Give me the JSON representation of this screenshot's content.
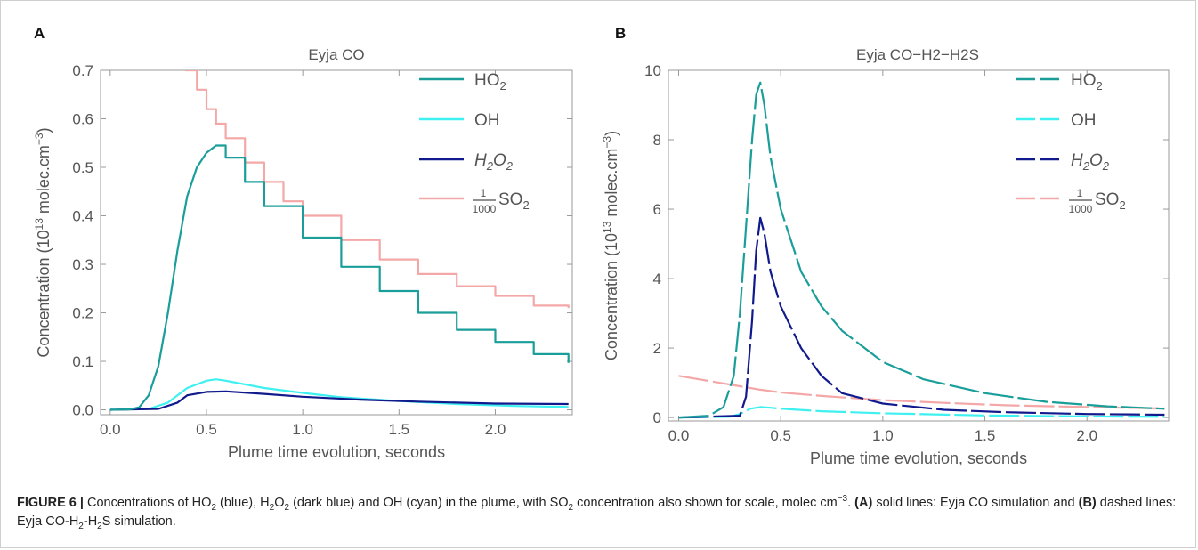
{
  "figure": {
    "caption": {
      "label": "FIGURE 6 |",
      "t1": " Concentrations of HO",
      "t1_sub": "2",
      "t2": " (blue), H",
      "t2_sub": "2",
      "t3": "O",
      "t3_sub": "2",
      "t4": " (dark blue) and OH (cyan) in the plume, with SO",
      "t4_sub": "2",
      "t5": " concentration also shown for scale, molec cm",
      "t5_sup": "−3",
      "t6": ". ",
      "bold_a": "(A)",
      "t7": " solid lines: Eyja CO simulation and ",
      "bold_b": "(B)",
      "t8": " dashed lines: Eyja CO-H",
      "t8_sub": "2",
      "t9": "-H",
      "t9_sub": "2",
      "t10": "S simulation."
    }
  },
  "colors": {
    "HO2": "#1a9e9a",
    "OH": "#3ff0f0",
    "H2O2": "#101a8c",
    "SO2": "#f4a7a7",
    "axis": "#999999",
    "text": "#555555"
  },
  "chart_data": [
    {
      "panel": "A",
      "type": "line",
      "title": "Eyja CO",
      "xlabel": "Plume time evolution, seconds",
      "ylabel_main": "Concentration",
      "ylabel_unit": "(10",
      "ylabel_exp": "13",
      "ylabel_tail": " molec.cm",
      "ylabel_exp2": "−3",
      "ylabel_close": ")",
      "xlim": [
        -0.05,
        2.4
      ],
      "ylim": [
        -0.01,
        0.7
      ],
      "xticks": [
        0.0,
        0.5,
        1.0,
        1.5,
        2.0
      ],
      "xtick_labels": [
        "0.0",
        "0.5",
        "1.0",
        "1.5",
        "2.0"
      ],
      "yticks": [
        0.0,
        0.1,
        0.2,
        0.3,
        0.4,
        0.5,
        0.6,
        0.7
      ],
      "ytick_labels": [
        "0.0",
        "0.1",
        "0.2",
        "0.3",
        "0.4",
        "0.5",
        "0.6",
        "0.7"
      ],
      "line_style": "solid",
      "legend_position": "top-right",
      "legend": [
        {
          "label": "HO",
          "sub": "2",
          "key": "HO2"
        },
        {
          "label": "OH",
          "sub": "",
          "key": "OH"
        },
        {
          "label": "H2O2",
          "key": "H2O2"
        },
        {
          "label": "SO",
          "sub": "2",
          "frac_num": "1",
          "frac_den": "1000",
          "key": "SO2"
        }
      ],
      "series": [
        {
          "name": "HO2",
          "key": "HO2",
          "x": [
            0.0,
            0.1,
            0.15,
            0.2,
            0.25,
            0.3,
            0.35,
            0.4,
            0.45,
            0.5,
            0.55,
            0.6,
            0.7,
            0.8,
            1.0,
            1.2,
            1.4,
            1.6,
            1.8,
            2.0,
            2.2,
            2.38
          ],
          "y": [
            0.0,
            0.001,
            0.005,
            0.03,
            0.09,
            0.2,
            0.33,
            0.44,
            0.5,
            0.53,
            0.545,
            0.52,
            0.47,
            0.42,
            0.355,
            0.295,
            0.245,
            0.2,
            0.165,
            0.14,
            0.115,
            0.097
          ]
        },
        {
          "name": "OH",
          "key": "OH",
          "x": [
            0.0,
            0.2,
            0.3,
            0.4,
            0.5,
            0.55,
            0.6,
            0.8,
            1.0,
            1.2,
            1.5,
            1.8,
            2.1,
            2.38
          ],
          "y": [
            0.0,
            0.002,
            0.015,
            0.045,
            0.06,
            0.063,
            0.06,
            0.045,
            0.035,
            0.026,
            0.018,
            0.012,
            0.008,
            0.006
          ]
        },
        {
          "name": "H2O2",
          "key": "H2O2",
          "x": [
            0.0,
            0.25,
            0.35,
            0.4,
            0.5,
            0.6,
            0.8,
            1.0,
            1.3,
            1.6,
            2.0,
            2.38
          ],
          "y": [
            0.0,
            0.002,
            0.015,
            0.03,
            0.037,
            0.038,
            0.033,
            0.027,
            0.021,
            0.017,
            0.013,
            0.012
          ]
        },
        {
          "name": "SO2/1000",
          "key": "SO2",
          "x": [
            0.39,
            0.45,
            0.5,
            0.55,
            0.6,
            0.7,
            0.8,
            0.9,
            1.0,
            1.2,
            1.4,
            1.6,
            1.8,
            2.0,
            2.2,
            2.38
          ],
          "y": [
            0.7,
            0.66,
            0.62,
            0.59,
            0.56,
            0.51,
            0.47,
            0.43,
            0.4,
            0.35,
            0.31,
            0.28,
            0.255,
            0.235,
            0.215,
            0.21
          ]
        }
      ]
    },
    {
      "panel": "B",
      "type": "line",
      "title": "Eyja CO−H2−H2S",
      "xlabel": "Plume time evolution, seconds",
      "ylabel_main": "Concentration",
      "ylabel_unit": "(10",
      "ylabel_exp": "13",
      "ylabel_tail": " molec.cm",
      "ylabel_exp2": "−3",
      "ylabel_close": ")",
      "xlim": [
        -0.05,
        2.4
      ],
      "ylim": [
        -0.1,
        10
      ],
      "xticks": [
        0.0,
        0.5,
        1.0,
        1.5,
        2.0
      ],
      "xtick_labels": [
        "0.0",
        "0.5",
        "1.0",
        "1.5",
        "2.0"
      ],
      "yticks": [
        0,
        2,
        4,
        6,
        8,
        10
      ],
      "ytick_labels": [
        "0",
        "2",
        "4",
        "6",
        "8",
        "10"
      ],
      "line_style": "dashed",
      "legend_position": "top-right",
      "legend": [
        {
          "label": "HO",
          "sub": "2",
          "key": "HO2"
        },
        {
          "label": "OH",
          "sub": "",
          "key": "OH"
        },
        {
          "label": "H2O2",
          "key": "H2O2"
        },
        {
          "label": "SO",
          "sub": "2",
          "frac_num": "1",
          "frac_den": "1000",
          "key": "SO2"
        }
      ],
      "series": [
        {
          "name": "HO2",
          "key": "HO2",
          "x": [
            0.0,
            0.15,
            0.22,
            0.27,
            0.3,
            0.33,
            0.36,
            0.38,
            0.4,
            0.42,
            0.45,
            0.5,
            0.6,
            0.7,
            0.8,
            1.0,
            1.2,
            1.5,
            1.8,
            2.1,
            2.38
          ],
          "y": [
            0.0,
            0.05,
            0.3,
            1.2,
            3.0,
            5.5,
            8.0,
            9.3,
            9.65,
            9.0,
            7.5,
            6.0,
            4.2,
            3.2,
            2.5,
            1.6,
            1.1,
            0.7,
            0.45,
            0.32,
            0.25
          ]
        },
        {
          "name": "OH",
          "key": "OH",
          "x": [
            0.0,
            0.25,
            0.3,
            0.35,
            0.4,
            0.45,
            0.5,
            0.7,
            1.0,
            1.5,
            2.0,
            2.38
          ],
          "y": [
            0.0,
            0.02,
            0.1,
            0.25,
            0.3,
            0.28,
            0.25,
            0.18,
            0.12,
            0.06,
            0.03,
            0.02
          ]
        },
        {
          "name": "H2O2",
          "key": "H2O2",
          "x": [
            0.0,
            0.3,
            0.33,
            0.36,
            0.38,
            0.4,
            0.42,
            0.45,
            0.5,
            0.6,
            0.7,
            0.8,
            1.0,
            1.3,
            1.6,
            2.0,
            2.38
          ],
          "y": [
            0.0,
            0.05,
            0.6,
            2.8,
            4.8,
            5.75,
            5.3,
            4.2,
            3.2,
            2.0,
            1.2,
            0.7,
            0.4,
            0.22,
            0.15,
            0.1,
            0.08
          ]
        },
        {
          "name": "SO2/1000",
          "key": "SO2",
          "x": [
            0.0,
            0.1,
            0.2,
            0.3,
            0.4,
            0.5,
            0.7,
            1.0,
            1.3,
            1.6,
            2.0,
            2.38
          ],
          "y": [
            1.2,
            1.1,
            1.0,
            0.9,
            0.8,
            0.72,
            0.62,
            0.5,
            0.42,
            0.35,
            0.3,
            0.26
          ]
        }
      ]
    }
  ],
  "panel_letters": [
    "A",
    "B"
  ]
}
